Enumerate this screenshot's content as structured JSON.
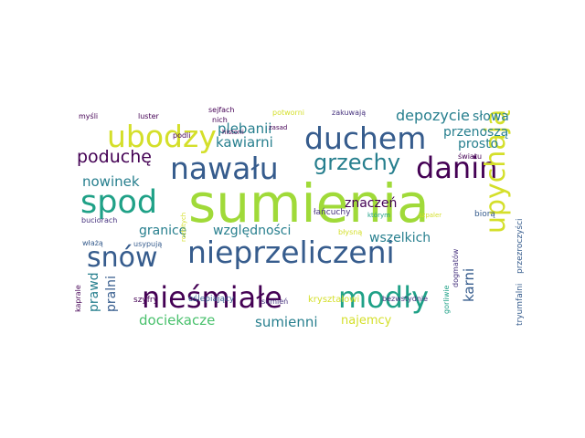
{
  "word_cloud": {
    "palette": {
      "purple": "#440154",
      "indigo": "#46327e",
      "blue": "#365c8d",
      "teal": "#277f8e",
      "green": "#1fa187",
      "lightgreen": "#4ac16d",
      "lime": "#a0da39",
      "yellow": "#d4df2a"
    },
    "words": {
      "sumienia": "sumienia",
      "nawalu": "nawału",
      "danin": "danin",
      "spod": "spod",
      "nieprzeliczeni": "nieprzeliczeni",
      "duchem": "duchem",
      "ubodzy": "ubodzy",
      "snow": "snów",
      "niesmiale": "nieśmiałe",
      "modly": "modły",
      "upychaja": "upychają",
      "grzechy": "grzechy",
      "poduche": "poduchę",
      "plebanii": "plebanii",
      "kawiarni": "kawiarni",
      "depozycie": "depozycie",
      "slowa": "słowa",
      "przenosza": "przenoszą",
      "prosto": "prosto",
      "nowinek": "nowinek",
      "znaczen": "znaczeń",
      "granice": "granicę",
      "wzglednosci": "względności",
      "wszelkich": "wszelkich",
      "prawd": "prawd",
      "pralni": "pralni",
      "karni": "karni",
      "dociekacze": "dociekacze",
      "sumienni": "sumienni",
      "najemcy": "najemcy",
      "krysztalowi": "kryształowi",
      "oslepiajacy": "oślepiający",
      "szyfry": "szyfry",
      "sumien": "sumień",
      "bezwstydnie": "bezwstydnie",
      "gorliwie": "gorliwie",
      "dogmatow": "dogmatów",
      "tryumfalni": "tryumfalni",
      "przezroczysci": "przezroczyści",
      "kaprale": "kaprale",
      "wlaza": "włażą",
      "usypuja": "usypują",
      "rozbitych": "rozbitych",
      "buciorach": "buciorach",
      "podli": "podli",
      "historii": "historii",
      "zasad": "zasad",
      "nich": "nich",
      "sejfach": "sejfach",
      "luster": "luster",
      "mysli": "myśli",
      "potworni": "potworni",
      "zakuwaja": "zakuwają",
      "swiatu": "światu",
      "lancuchy": "łańcuchy",
      "ktorym": "którym",
      "szpaler": "szpaler",
      "biora": "biorą",
      "blysna": "błysną"
    }
  }
}
